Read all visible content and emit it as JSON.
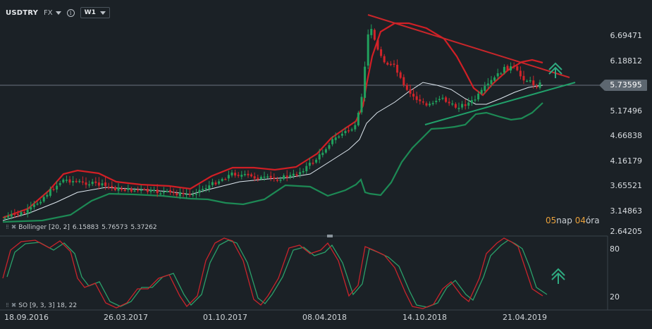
{
  "toolbar": {
    "symbol": "USDTRY",
    "market": "FX",
    "timeframe": "W1"
  },
  "price_axis": [
    "6.69471",
    "6.18812",
    "5.17496",
    "4.66838",
    "4.16179",
    "3.65521",
    "3.14863",
    "2.64205"
  ],
  "current_price": "5.73595",
  "stochastic_axis": [
    "80",
    "20"
  ],
  "date_axis": [
    "18.09.2016",
    "26.03.2017",
    "01.10.2017",
    "08.04.2018",
    "14.10.2018",
    "21.04.2019"
  ],
  "bollinger_legend": {
    "label": "Bollinger [20, 2]",
    "upper": "6.15883",
    "middle": "5.76573",
    "lower": "5.37262"
  },
  "stochastic_legend": {
    "label": "SO [9, 3, 3] 18, 22"
  },
  "countdown": {
    "days": "05",
    "days_unit": "nap",
    "hours": "04",
    "hours_unit": "óra"
  },
  "colors": {
    "background": "#1b2126",
    "bullish": "#21a05d",
    "bearish": "#d2242a",
    "bollinger_upper": "#d11f25",
    "bollinger_middle": "#dfe8f0",
    "bollinger_lower": "#1d8a55",
    "stoch_k": "#c9242b",
    "stoch_d": "#2aa06a",
    "trendline_upper": "#c8262a",
    "trendline_lower": "#21a06a",
    "signal_arrow": "#2faa80"
  },
  "icons": [
    "info-icon",
    "caret-down-icon",
    "drag-handle-icon",
    "close-icon",
    "up-arrow-icon"
  ]
}
